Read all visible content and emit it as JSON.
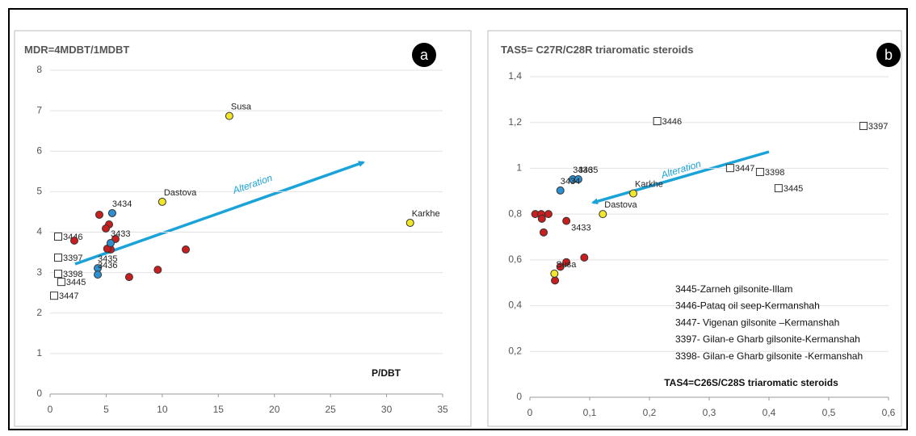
{
  "chart_data": [
    {
      "type": "scatter",
      "title": "MDR=4MDBT/1MDBT",
      "badge": "a",
      "x_label": "P/DBT",
      "annotation": "Alteration",
      "xlim": [
        0,
        35
      ],
      "xticks": [
        0,
        5,
        10,
        15,
        20,
        25,
        30,
        35
      ],
      "ylim": [
        0,
        8
      ],
      "yticks": [
        0,
        1,
        2,
        3,
        4,
        5,
        6,
        7,
        8
      ],
      "grid": true,
      "series": [
        {
          "marker": "square",
          "color": "#ffffff",
          "x": [
            0.72,
            0.72,
            0.72,
            1.0,
            0.36
          ],
          "values": [
            3.89,
            3.37,
            2.97,
            2.77,
            2.43
          ],
          "labels": [
            "3446",
            "3397",
            "3398",
            "3445",
            "3447"
          ]
        },
        {
          "marker": "circle",
          "color": "#c81e1e",
          "x": [
            2.16,
            4.39,
            5.26,
            4.97,
            5.83,
            5.4,
            5.1,
            7.05,
            9.6,
            12.1
          ],
          "values": [
            3.79,
            4.43,
            4.19,
            4.09,
            3.83,
            3.57,
            3.59,
            2.89,
            3.07,
            3.57
          ],
          "labels": [
            null,
            null,
            null,
            null,
            null,
            null,
            null,
            null,
            null,
            null
          ]
        },
        {
          "marker": "circle",
          "color": "#2e8fd0",
          "x": [
            5.54,
            5.4,
            4.25,
            4.25
          ],
          "values": [
            4.47,
            3.73,
            3.11,
            2.95
          ],
          "labels": [
            "3434",
            "3433",
            "3435",
            "3436"
          ]
        },
        {
          "marker": "circle",
          "color": "#f2e62a",
          "x": [
            15.98,
            10.0,
            32.1
          ],
          "values": [
            6.87,
            4.75,
            4.23
          ],
          "labels": [
            "Susa",
            "Dastova",
            "Karkhe"
          ]
        }
      ]
    },
    {
      "type": "scatter",
      "title": "TAS5= C27R/C28R triaromatic steroids",
      "badge": "b",
      "x_label": "TAS4=C26S/C28S triaromatic steroids",
      "annotation": "Alteration",
      "xlim": [
        0,
        0.6
      ],
      "xticks": [
        0,
        {
          "value": 0.1,
          "label": "0,1"
        },
        {
          "value": 0.2,
          "label": "0,2"
        },
        {
          "value": 0.3,
          "label": "0,3"
        },
        {
          "value": 0.4,
          "label": "0,4"
        },
        {
          "value": 0.5,
          "label": "0,5"
        },
        {
          "value": 0.6,
          "label": "0,6"
        }
      ],
      "ylim": [
        0,
        1.4
      ],
      "yticks": [
        0,
        {
          "value": 0.2,
          "label": "0,2"
        },
        {
          "value": 0.4,
          "label": "0,4"
        },
        {
          "value": 0.6,
          "label": "0,6"
        },
        {
          "value": 0.8,
          "label": "0,8"
        },
        1,
        {
          "value": 1.2,
          "label": "1,2"
        },
        {
          "value": 1.4,
          "label": "1,4"
        }
      ],
      "grid": true,
      "notes": [
        "3445-Zarneh gilsonite-Illam",
        "3446-Pataq oil seep-Kermanshah",
        "3447- Vigenan gilsonite –Kermanshah",
        "3397- Gilan-e Gharb gilsonite-Kermanshah",
        "3398- Gilan-e Gharb gilsonite -Kermanshah"
      ],
      "series": [
        {
          "marker": "square",
          "color": "#ffffff",
          "x": [
            0.213,
            0.558,
            0.335,
            0.385,
            0.416
          ],
          "values": [
            1.206,
            1.185,
            1.001,
            0.984,
            0.913
          ],
          "labels": [
            "3446",
            "3397",
            "3447",
            "3398",
            "3445"
          ]
        },
        {
          "marker": "circle",
          "color": "#c81e1e",
          "x": [
            0.009,
            0.019,
            0.031,
            0.02,
            0.023,
            0.061,
            0.051,
            0.061,
            0.091,
            0.042
          ],
          "values": [
            0.8,
            0.8,
            0.8,
            0.78,
            0.72,
            0.77,
            0.57,
            0.59,
            0.61,
            0.51
          ],
          "labels": [
            null,
            null,
            null,
            null,
            null,
            "3433",
            null,
            null,
            null,
            null
          ]
        },
        {
          "marker": "circle",
          "color": "#2e8fd0",
          "x": [
            0.072,
            0.081,
            0.051
          ],
          "values": [
            0.952,
            0.952,
            0.903
          ],
          "labels": [
            "3436",
            "3435",
            "3434"
          ]
        },
        {
          "marker": "circle",
          "color": "#f2e62a",
          "x": [
            0.041,
            0.122,
            0.173
          ],
          "values": [
            0.54,
            0.8,
            0.89
          ],
          "labels": [
            "Susa",
            "Dastova",
            "Karkhe"
          ]
        }
      ]
    }
  ]
}
